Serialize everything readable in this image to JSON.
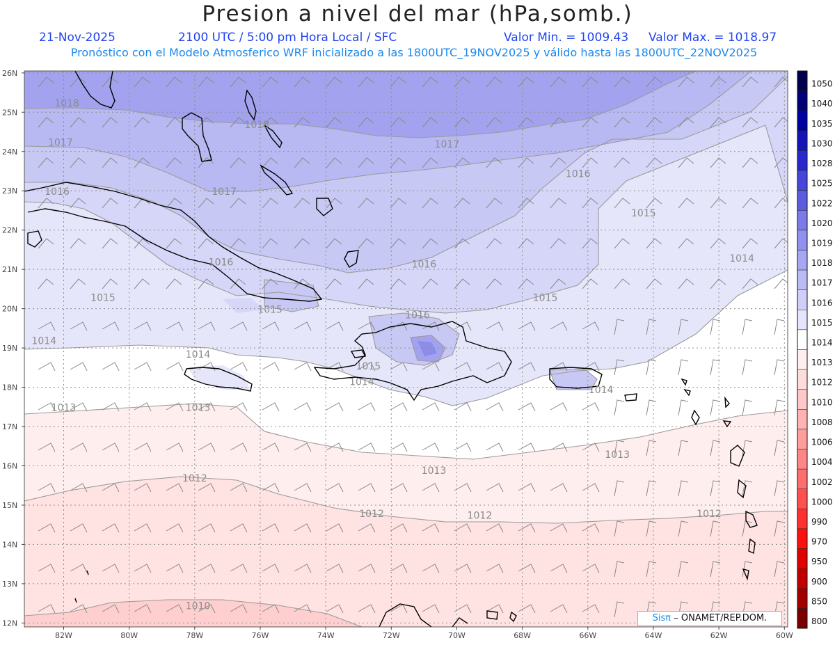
{
  "header": {
    "title": "Presion a nivel del mar (hPa,somb.)",
    "date": "21-Nov-2025",
    "time": "2100 UTC / 5:00 pm Hora Local / SFC",
    "min_label": "Valor Min. = 1009.43",
    "max_label": "Valor Max. = 1018.97",
    "model_info": "Pronóstico con el Modelo Atmosferico WRF inicializado a las 1800UTC_19NOV2025 y válido hasta las  1800UTC_22NOV2025"
  },
  "axes": {
    "lat_labels": [
      "26N",
      "25N",
      "24N",
      "23N",
      "22N",
      "21N",
      "20N",
      "19N",
      "18N",
      "17N",
      "16N",
      "15N",
      "14N",
      "13N",
      "12N"
    ],
    "lon_labels": [
      "82W",
      "80W",
      "78W",
      "76W",
      "74W",
      "72W",
      "70W",
      "68W",
      "66W",
      "64W",
      "62W",
      "60W"
    ]
  },
  "contour_labels": [
    {
      "text": "1018",
      "lon": -81.9,
      "lat": 25.15
    },
    {
      "text": "1018",
      "lon": -76.1,
      "lat": 24.6
    },
    {
      "text": "1017",
      "lon": -82.1,
      "lat": 24.15
    },
    {
      "text": "1017",
      "lon": -70.3,
      "lat": 24.1
    },
    {
      "text": "1017",
      "lon": -77.1,
      "lat": 22.9
    },
    {
      "text": "1016",
      "lon": -82.2,
      "lat": 22.9
    },
    {
      "text": "1016",
      "lon": -66.3,
      "lat": 23.35
    },
    {
      "text": "1015",
      "lon": -64.3,
      "lat": 22.35
    },
    {
      "text": "1016",
      "lon": -77.2,
      "lat": 21.1
    },
    {
      "text": "1016",
      "lon": -71.0,
      "lat": 21.05
    },
    {
      "text": "1014",
      "lon": -61.3,
      "lat": 21.2
    },
    {
      "text": "1015",
      "lon": -80.8,
      "lat": 20.2
    },
    {
      "text": "1015",
      "lon": -75.7,
      "lat": 19.9
    },
    {
      "text": "1015",
      "lon": -67.3,
      "lat": 20.2
    },
    {
      "text": "1016",
      "lon": -71.2,
      "lat": 19.75
    },
    {
      "text": "1014",
      "lon": -82.6,
      "lat": 19.1
    },
    {
      "text": "1014",
      "lon": -77.9,
      "lat": 18.75
    },
    {
      "text": "1015",
      "lon": -72.7,
      "lat": 18.45
    },
    {
      "text": "1014",
      "lon": -72.9,
      "lat": 18.05
    },
    {
      "text": "1014",
      "lon": -65.6,
      "lat": 17.85
    },
    {
      "text": "1013",
      "lon": -82.0,
      "lat": 17.4
    },
    {
      "text": "1013",
      "lon": -77.9,
      "lat": 17.4
    },
    {
      "text": "1013",
      "lon": -70.7,
      "lat": 15.8
    },
    {
      "text": "1013",
      "lon": -65.1,
      "lat": 16.2
    },
    {
      "text": "1012",
      "lon": -78.0,
      "lat": 15.6
    },
    {
      "text": "1012",
      "lon": -72.6,
      "lat": 14.7
    },
    {
      "text": "1012",
      "lon": -69.3,
      "lat": 14.65
    },
    {
      "text": "1012",
      "lon": -62.3,
      "lat": 14.7
    },
    {
      "text": "1010",
      "lon": -77.9,
      "lat": 12.35
    }
  ],
  "colorbar": {
    "levels": [
      "1050",
      "1040",
      "1035",
      "1030",
      "1028",
      "1025",
      "1022",
      "1020",
      "1019",
      "1018",
      "1017",
      "1016",
      "1015",
      "1014",
      "1013",
      "1012",
      "1010",
      "1008",
      "1006",
      "1004",
      "1002",
      "1000",
      "990",
      "970",
      "950",
      "900",
      "850",
      "800"
    ],
    "colors": [
      "#00004c",
      "#000078",
      "#0000a0",
      "#1414b8",
      "#2828cc",
      "#4646dc",
      "#5c5ce2",
      "#7a7ae8",
      "#9090ee",
      "#a6a6f2",
      "#babaf4",
      "#ceceF8",
      "#e4e4fa",
      "#ffffff",
      "#ffeeee",
      "#ffdcdc",
      "#ffc8c8",
      "#ffb2b2",
      "#ff9c9c",
      "#ff8686",
      "#ff6e6e",
      "#ff5050",
      "#ff3030",
      "#ff1010",
      "#e00000",
      "#c00000",
      "#a00000",
      "#7a0000"
    ]
  },
  "colors": {
    "land_outline": "#000000",
    "contour": "#9a9a9a",
    "grid": "#8c8c8c",
    "wind_barb": "#8a8a8a"
  },
  "credit": {
    "logo": "Sisπ",
    "text": "– ONAMET/REP.DOM."
  }
}
